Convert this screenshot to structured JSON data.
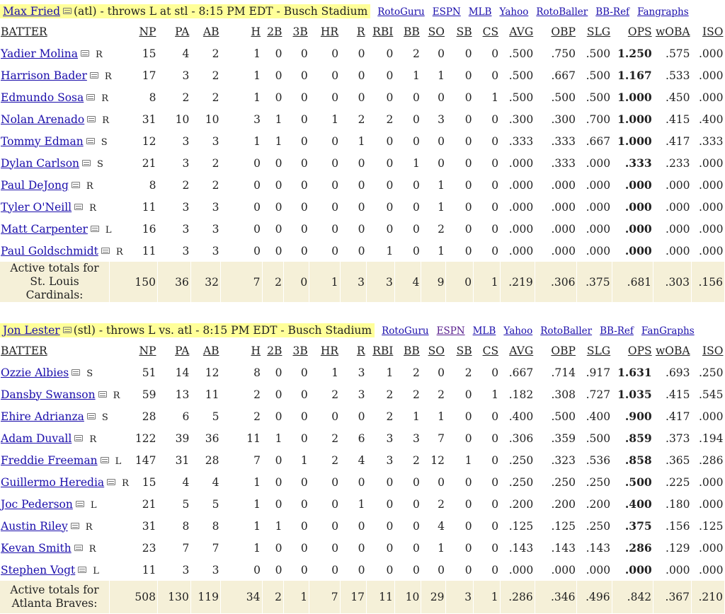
{
  "games": [
    {
      "pitcher": {
        "name": "Max Fried",
        "detail": "(atl) - throws L at stl - 8:15 PM EDT - Busch Stadium"
      },
      "links": [
        "RotoGuru",
        "ESPN",
        "MLB",
        "Yahoo",
        "RotoBaller",
        "BB-Ref",
        "Fangraphs"
      ],
      "columns": [
        "BATTER",
        "NP",
        "PA",
        "AB",
        "H",
        "2B",
        "3B",
        "HR",
        "R",
        "RBI",
        "BB",
        "SO",
        "SB",
        "CS",
        "AVG",
        "OBP",
        "SLG",
        "OPS",
        "wOBA",
        "ISO"
      ],
      "batters": [
        {
          "name": "Yadier Molina",
          "hand": "R",
          "stats": [
            "15",
            "4",
            "2",
            "1",
            "0",
            "0",
            "0",
            "0",
            "0",
            "2",
            "0",
            "0",
            "0",
            ".500",
            ".750",
            ".500",
            "1.250",
            ".575",
            ".000"
          ]
        },
        {
          "name": "Harrison Bader",
          "hand": "R",
          "stats": [
            "17",
            "3",
            "2",
            "1",
            "0",
            "0",
            "0",
            "0",
            "0",
            "1",
            "1",
            "0",
            "0",
            ".500",
            ".667",
            ".500",
            "1.167",
            ".533",
            ".000"
          ]
        },
        {
          "name": "Edmundo Sosa",
          "hand": "R",
          "stats": [
            "8",
            "2",
            "2",
            "1",
            "0",
            "0",
            "0",
            "0",
            "0",
            "0",
            "0",
            "0",
            "1",
            ".500",
            ".500",
            ".500",
            "1.000",
            ".450",
            ".000"
          ]
        },
        {
          "name": "Nolan Arenado",
          "hand": "R",
          "stats": [
            "31",
            "10",
            "10",
            "3",
            "1",
            "0",
            "1",
            "2",
            "2",
            "0",
            "3",
            "0",
            "0",
            ".300",
            ".300",
            ".700",
            "1.000",
            ".415",
            ".400"
          ]
        },
        {
          "name": "Tommy Edman",
          "hand": "S",
          "stats": [
            "12",
            "3",
            "3",
            "1",
            "1",
            "0",
            "0",
            "1",
            "0",
            "0",
            "0",
            "0",
            "0",
            ".333",
            ".333",
            ".667",
            "1.000",
            ".417",
            ".333"
          ]
        },
        {
          "name": "Dylan Carlson",
          "hand": "S",
          "stats": [
            "21",
            "3",
            "2",
            "0",
            "0",
            "0",
            "0",
            "0",
            "0",
            "1",
            "0",
            "0",
            "0",
            ".000",
            ".333",
            ".000",
            ".333",
            ".233",
            ".000"
          ]
        },
        {
          "name": "Paul DeJong",
          "hand": "R",
          "stats": [
            "8",
            "2",
            "2",
            "0",
            "0",
            "0",
            "0",
            "0",
            "0",
            "0",
            "1",
            "0",
            "0",
            ".000",
            ".000",
            ".000",
            ".000",
            ".000",
            ".000"
          ]
        },
        {
          "name": "Tyler O'Neill",
          "hand": "R",
          "stats": [
            "11",
            "3",
            "3",
            "0",
            "0",
            "0",
            "0",
            "0",
            "0",
            "0",
            "1",
            "0",
            "0",
            ".000",
            ".000",
            ".000",
            ".000",
            ".000",
            ".000"
          ]
        },
        {
          "name": "Matt Carpenter",
          "hand": "L",
          "stats": [
            "16",
            "3",
            "3",
            "0",
            "0",
            "0",
            "0",
            "0",
            "0",
            "0",
            "2",
            "0",
            "0",
            ".000",
            ".000",
            ".000",
            ".000",
            ".000",
            ".000"
          ]
        },
        {
          "name": "Paul Goldschmidt",
          "hand": "R",
          "stats": [
            "11",
            "3",
            "3",
            "0",
            "0",
            "0",
            "0",
            "0",
            "1",
            "0",
            "1",
            "0",
            "0",
            ".000",
            ".000",
            ".000",
            ".000",
            ".000",
            ".000"
          ]
        }
      ],
      "totals": {
        "label_line1": "Active totals for",
        "label_line2": "St. Louis Cardinals:",
        "stats": [
          "150",
          "36",
          "32",
          "7",
          "2",
          "0",
          "1",
          "3",
          "3",
          "4",
          "9",
          "0",
          "1",
          ".219",
          ".306",
          ".375",
          ".681",
          ".303",
          ".156"
        ]
      }
    },
    {
      "pitcher": {
        "name": "Jon Lester",
        "detail": "(stl) - throws L vs. atl - 8:15 PM EDT - Busch Stadium"
      },
      "links": [
        "RotoGuru",
        "ESPN",
        "MLB",
        "Yahoo",
        "RotoBaller",
        "BB-Ref",
        "FanGraphs"
      ],
      "columns": [
        "BATTER",
        "NP",
        "PA",
        "AB",
        "H",
        "2B",
        "3B",
        "HR",
        "R",
        "RBI",
        "BB",
        "SO",
        "SB",
        "CS",
        "AVG",
        "OBP",
        "SLG",
        "OPS",
        "wOBA",
        "ISO"
      ],
      "batters": [
        {
          "name": "Ozzie Albies",
          "hand": "S",
          "stats": [
            "51",
            "14",
            "12",
            "8",
            "0",
            "0",
            "1",
            "3",
            "1",
            "2",
            "0",
            "2",
            "0",
            ".667",
            ".714",
            ".917",
            "1.631",
            ".693",
            ".250"
          ]
        },
        {
          "name": "Dansby Swanson",
          "hand": "R",
          "stats": [
            "59",
            "13",
            "11",
            "2",
            "0",
            "0",
            "2",
            "3",
            "2",
            "2",
            "2",
            "0",
            "1",
            ".182",
            ".308",
            ".727",
            "1.035",
            ".415",
            ".545"
          ]
        },
        {
          "name": "Ehire Adrianza",
          "hand": "S",
          "stats": [
            "28",
            "6",
            "5",
            "2",
            "0",
            "0",
            "0",
            "0",
            "2",
            "1",
            "1",
            "0",
            "0",
            ".400",
            ".500",
            ".400",
            ".900",
            ".417",
            ".000"
          ]
        },
        {
          "name": "Adam Duvall",
          "hand": "R",
          "stats": [
            "122",
            "39",
            "36",
            "11",
            "1",
            "0",
            "2",
            "6",
            "3",
            "3",
            "7",
            "0",
            "0",
            ".306",
            ".359",
            ".500",
            ".859",
            ".373",
            ".194"
          ]
        },
        {
          "name": "Freddie Freeman",
          "hand": "L",
          "stats": [
            "147",
            "31",
            "28",
            "7",
            "0",
            "1",
            "2",
            "4",
            "3",
            "2",
            "12",
            "1",
            "0",
            ".250",
            ".323",
            ".536",
            ".858",
            ".365",
            ".286"
          ]
        },
        {
          "name": "Guillermo Heredia",
          "hand": "R",
          "stats": [
            "15",
            "4",
            "4",
            "1",
            "0",
            "0",
            "0",
            "0",
            "0",
            "0",
            "0",
            "0",
            "0",
            ".250",
            ".250",
            ".250",
            ".500",
            ".225",
            ".000"
          ]
        },
        {
          "name": "Joc Pederson",
          "hand": "L",
          "stats": [
            "21",
            "5",
            "5",
            "1",
            "0",
            "0",
            "0",
            "1",
            "0",
            "0",
            "2",
            "0",
            "0",
            ".200",
            ".200",
            ".200",
            ".400",
            ".180",
            ".000"
          ]
        },
        {
          "name": "Austin Riley",
          "hand": "R",
          "stats": [
            "31",
            "8",
            "8",
            "1",
            "1",
            "0",
            "0",
            "0",
            "0",
            "0",
            "4",
            "0",
            "0",
            ".125",
            ".125",
            ".250",
            ".375",
            ".156",
            ".125"
          ]
        },
        {
          "name": "Kevan Smith",
          "hand": "R",
          "stats": [
            "23",
            "7",
            "7",
            "1",
            "0",
            "0",
            "0",
            "0",
            "0",
            "0",
            "1",
            "0",
            "0",
            ".143",
            ".143",
            ".143",
            ".286",
            ".129",
            ".000"
          ]
        },
        {
          "name": "Stephen Vogt",
          "hand": "L",
          "stats": [
            "11",
            "3",
            "3",
            "0",
            "0",
            "0",
            "0",
            "0",
            "0",
            "0",
            "0",
            "0",
            "0",
            ".000",
            ".000",
            ".000",
            ".000",
            ".000",
            ".000"
          ]
        }
      ],
      "totals": {
        "label_line1": "Active totals for",
        "label_line2": "Atlanta Braves:",
        "stats": [
          "508",
          "130",
          "119",
          "34",
          "2",
          "1",
          "7",
          "17",
          "11",
          "10",
          "29",
          "3",
          "1",
          ".286",
          ".346",
          ".496",
          ".842",
          ".367",
          ".210"
        ]
      }
    }
  ]
}
